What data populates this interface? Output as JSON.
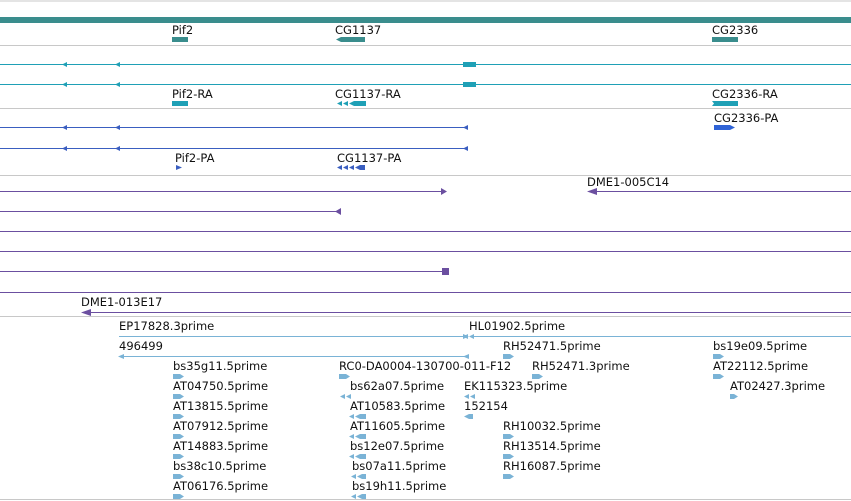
{
  "colors": {
    "gene": "#3a8d8d",
    "transcript": "#1fa0b6",
    "protein": "#3a5ec0",
    "protein_bold": "#2f63d6",
    "clone": "#6b4fa0",
    "est": "#7ab3d6",
    "separator": "#c8c8c8"
  },
  "genes": [
    {
      "label": "Pif2"
    },
    {
      "label": "CG1137"
    },
    {
      "label": "CG2336"
    }
  ],
  "transcripts": [
    {
      "label": "Pif2-RA"
    },
    {
      "label": "CG1137-RA"
    },
    {
      "label": "CG2336-RA"
    }
  ],
  "proteins": [
    {
      "label": "CG2336-PA"
    },
    {
      "label": "Pif2-PA"
    },
    {
      "label": "CG1137-PA"
    }
  ],
  "clones": [
    {
      "label": "DME1-005C14"
    },
    {
      "label": "DME1-013E17"
    }
  ],
  "ests": [
    {
      "label": "EP17828.3prime"
    },
    {
      "label": "HL01902.5prime"
    },
    {
      "label": "496499"
    },
    {
      "label": "RH52471.5prime"
    },
    {
      "label": "bs19e09.5prime"
    },
    {
      "label": "bs35g11.5prime"
    },
    {
      "label": "RC0-DA0004-130700-011-F12"
    },
    {
      "label": "RH52471.3prime"
    },
    {
      "label": "AT22112.5prime"
    },
    {
      "label": "AT04750.5prime"
    },
    {
      "label": "bs62a07.5prime"
    },
    {
      "label": "EK115323.5prime"
    },
    {
      "label": "AT02427.3prime"
    },
    {
      "label": "AT13815.5prime"
    },
    {
      "label": "AT10583.5prime"
    },
    {
      "label": "152154"
    },
    {
      "label": "AT07912.5prime"
    },
    {
      "label": "AT11605.5prime"
    },
    {
      "label": "RH10032.5prime"
    },
    {
      "label": "AT14883.5prime"
    },
    {
      "label": "bs12e07.5prime"
    },
    {
      "label": "RH13514.5prime"
    },
    {
      "label": "bs38c10.5prime"
    },
    {
      "label": "bs07a11.5prime"
    },
    {
      "label": "RH16087.5prime"
    },
    {
      "label": "AT06176.5prime"
    },
    {
      "label": "bs19h11.5prime"
    }
  ]
}
